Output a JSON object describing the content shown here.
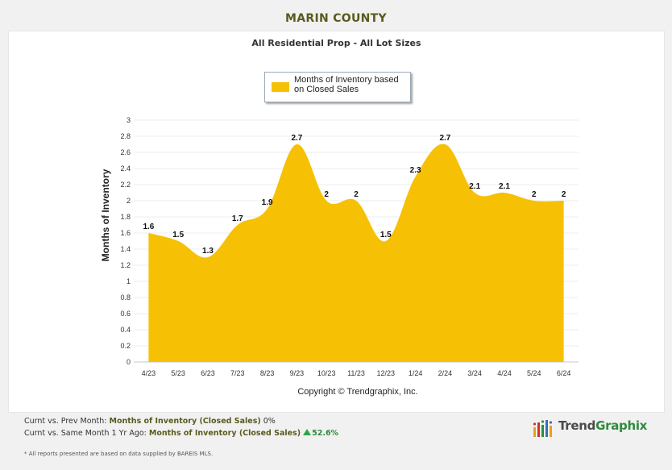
{
  "title": "MARIN COUNTY",
  "legend": {
    "label": "Months of Inventory based on Closed Sales",
    "color": "#f6c105"
  },
  "copyright": "Copyright © Trendgraphix, Inc.",
  "footer": {
    "line1_prefix": "Curnt vs. Prev Month: ",
    "line1_metric": "Months of Inventory (Closed Sales)",
    "line1_value": "0%",
    "line2_prefix": "Curnt vs. Same Month 1 Yr Ago: ",
    "line2_metric": "Months of Inventory (Closed Sales)",
    "line2_value": "52.6%",
    "note": "* All reports presented are based on data supplied by BAREIS MLS."
  },
  "logo": {
    "text_a": "Trend",
    "text_b": "Graphix",
    "icon": "bar-chart-logo-icon"
  },
  "chart_data": {
    "type": "area",
    "title": "All Residential Prop - All Lot Sizes",
    "ylabel": "Months of Inventory",
    "xlabel": "",
    "ylim": [
      0,
      3
    ],
    "yticks": [
      0,
      0.2,
      0.4,
      0.6,
      0.8,
      1,
      1.2,
      1.4,
      1.6,
      1.8,
      2,
      2.2,
      2.4,
      2.6,
      2.8,
      3
    ],
    "grid": true,
    "categories": [
      "4/23",
      "5/23",
      "6/23",
      "7/23",
      "8/23",
      "9/23",
      "10/23",
      "11/23",
      "12/23",
      "1/24",
      "2/24",
      "3/24",
      "4/24",
      "5/24",
      "6/24"
    ],
    "series": [
      {
        "name": "Months of Inventory based on Closed Sales",
        "color": "#f6c105",
        "values": [
          1.6,
          1.5,
          1.3,
          1.7,
          1.9,
          2.7,
          2,
          2,
          1.5,
          2.3,
          2.7,
          2.1,
          2.1,
          2,
          2
        ]
      }
    ]
  }
}
